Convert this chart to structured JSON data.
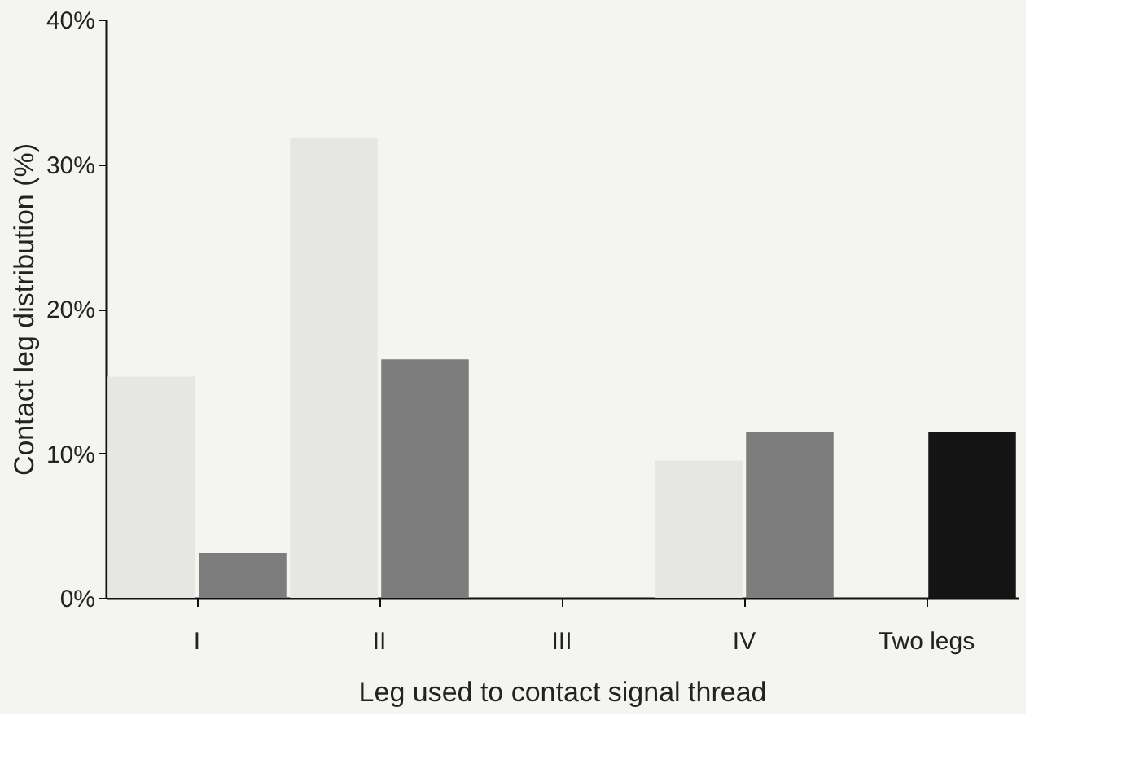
{
  "chart_data": {
    "type": "bar",
    "xlabel": "Leg used to contact signal thread",
    "ylabel": "Contact leg distribution (%)",
    "categories": [
      "I",
      "II",
      "III",
      "IV",
      "Two legs"
    ],
    "series": [
      {
        "color": "#e6e6e3",
        "values": [
          15.3,
          31.8,
          0,
          9.5,
          0
        ]
      },
      {
        "colors": [
          "#7d7d7d",
          "#7d7d7d",
          "#7d7d7d",
          "#7d7d7d",
          "#141414"
        ],
        "values": [
          3.1,
          16.5,
          0,
          11.5,
          11.5
        ]
      }
    ],
    "ylim": [
      0,
      40
    ],
    "yticks": [
      {
        "value": 0,
        "label": "0%"
      },
      {
        "value": 10,
        "label": "10%"
      },
      {
        "value": 20,
        "label": "20%"
      },
      {
        "value": 30,
        "label": "30%"
      },
      {
        "value": 40,
        "label": "40%"
      }
    ],
    "grid": false,
    "legend": false
  }
}
